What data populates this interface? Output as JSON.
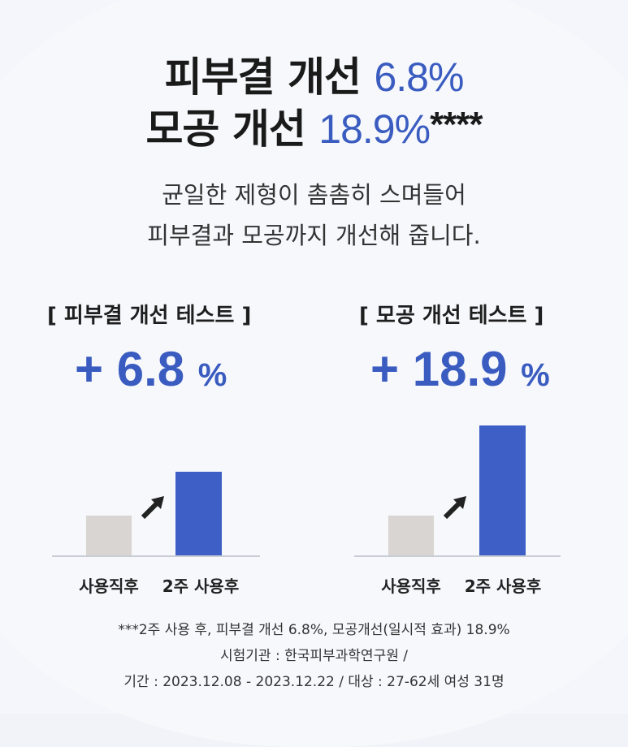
{
  "headline": {
    "line1_prefix": "피부결 개선",
    "line1_value": "6.8%",
    "line2_prefix": "모공 개선",
    "line2_value": "18.9%",
    "line2_suffix": "****"
  },
  "subtext": {
    "line1": "균일한 제형이 촘촘히 스며들어",
    "line2": "피부결과 모공까지 개선해 줍니다."
  },
  "tests": [
    {
      "title": "[ 피부결 개선 테스트 ]",
      "value_prefix": "+ 6.8",
      "value_unit": "%",
      "labels": [
        "사용직후",
        "2주 사용후"
      ],
      "bar_fractions": [
        0.27,
        0.57
      ]
    },
    {
      "title": "[ 모공 개선 테스트 ]",
      "value_prefix": "+ 18.9",
      "value_unit": "%",
      "labels": [
        "사용직후",
        "2주 사용후"
      ],
      "bar_fractions": [
        0.27,
        0.89
      ]
    }
  ],
  "footnote": {
    "line1": "***2주 사용 후, 피부결 개선 6.8%, 모공개선(일시적 효과) 18.9%",
    "line2": "시험기관 : 한국피부과학연구원 /",
    "line3": "기간 : 2023.12.08 - 2023.12.22 / 대상 : 27-62세 여성 31명"
  },
  "colors": {
    "accent": "#3a5cc0",
    "bar_before": "#d8d5d2",
    "bar_after": "#3d5fc6",
    "background": "#f4f6fb"
  }
}
